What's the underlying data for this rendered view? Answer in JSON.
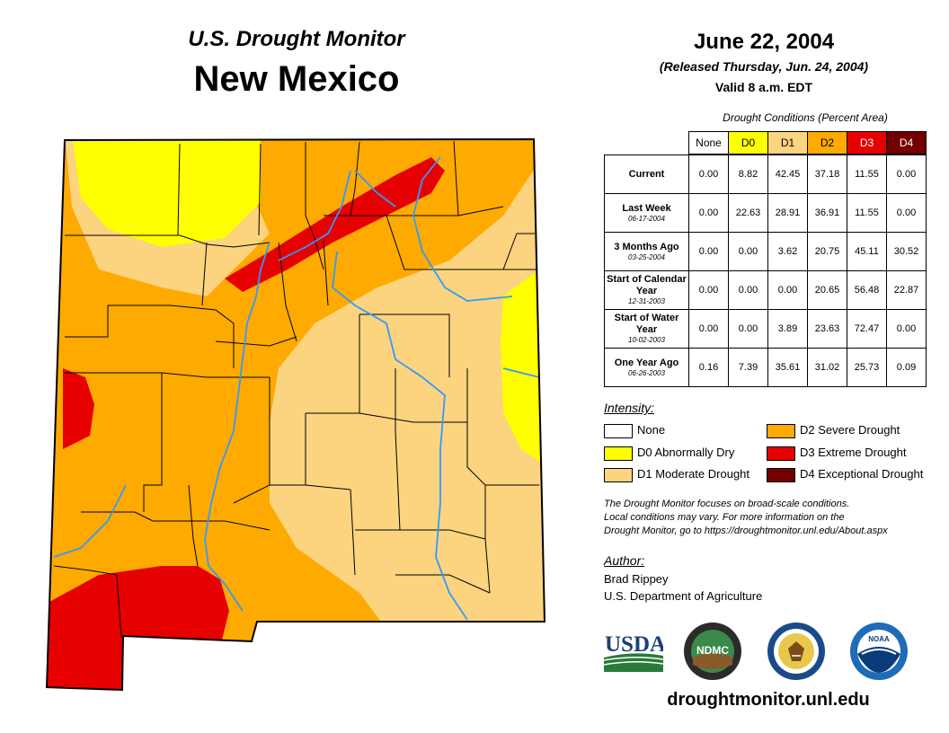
{
  "header": {
    "program": "U.S. Drought Monitor",
    "state": "New Mexico",
    "date": "June 22, 2004",
    "released": "(Released Thursday, Jun. 24, 2004)",
    "valid": "Valid 8 a.m. EDT"
  },
  "table": {
    "caption": "Drought Conditions (Percent Area)",
    "columns": [
      {
        "label": "None",
        "color": "#ffffff",
        "text_color": "#000000"
      },
      {
        "label": "D0",
        "color": "#ffff00",
        "text_color": "#000000"
      },
      {
        "label": "D1",
        "color": "#fcd37f",
        "text_color": "#000000"
      },
      {
        "label": "D2",
        "color": "#ffaa00",
        "text_color": "#000000"
      },
      {
        "label": "D3",
        "color": "#e60000",
        "text_color": "#ffffff"
      },
      {
        "label": "D4",
        "color": "#730000",
        "text_color": "#ffffff"
      }
    ],
    "rows": [
      {
        "label": "Current",
        "sub": "",
        "values": [
          "0.00",
          "8.82",
          "42.45",
          "37.18",
          "11.55",
          "0.00"
        ]
      },
      {
        "label": "Last Week",
        "sub": "06-17-2004",
        "values": [
          "0.00",
          "22.63",
          "28.91",
          "36.91",
          "11.55",
          "0.00"
        ]
      },
      {
        "label": "3 Months Ago",
        "sub": "03-25-2004",
        "values": [
          "0.00",
          "0.00",
          "3.62",
          "20.75",
          "45.11",
          "30.52"
        ]
      },
      {
        "label": "Start of Calendar Year",
        "sub": "12-31-2003",
        "values": [
          "0.00",
          "0.00",
          "0.00",
          "20.65",
          "56.48",
          "22.87"
        ]
      },
      {
        "label": "Start of Water Year",
        "sub": "10-02-2003",
        "values": [
          "0.00",
          "0.00",
          "3.89",
          "23.63",
          "72.47",
          "0.00"
        ]
      },
      {
        "label": "One Year Ago",
        "sub": "06-26-2003",
        "values": [
          "0.16",
          "7.39",
          "35.61",
          "31.02",
          "25.73",
          "0.09"
        ]
      }
    ]
  },
  "legend": {
    "title": "Intensity:",
    "items": [
      {
        "label": "None",
        "color": "#ffffff"
      },
      {
        "label": "D0 Abnormally Dry",
        "color": "#ffff00"
      },
      {
        "label": "D1 Moderate Drought",
        "color": "#fcd37f"
      },
      {
        "label": "D2 Severe Drought",
        "color": "#ffaa00"
      },
      {
        "label": "D3 Extreme Drought",
        "color": "#e60000"
      },
      {
        "label": "D4 Exceptional Drought",
        "color": "#730000"
      }
    ]
  },
  "note": {
    "line1": "The Drought Monitor focuses on broad-scale conditions.",
    "line2": "Local conditions may vary. For more information on the",
    "line3": "Drought Monitor, go to https://droughtmonitor.unl.edu/About.aspx"
  },
  "author": {
    "title": "Author:",
    "name": "Brad Rippey",
    "org": "U.S. Department of Agriculture"
  },
  "logos": {
    "usda": "USDA",
    "ndmc": "NDMC",
    "noaa": "NOAA",
    "doc_icon": "department-of-commerce-seal-icon"
  },
  "footer": {
    "url": "droughtmonitor.unl.edu"
  }
}
